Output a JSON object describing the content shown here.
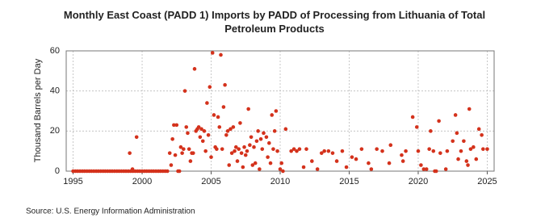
{
  "chart_data": {
    "type": "scatter",
    "title": "Monthly East Coast (PADD 1) Imports by PADD of Processing from Lithuania of Total Petroleum Products",
    "y_label": "Thousand Barrels per Day",
    "source": "Source: U.S. Energy Information Administration",
    "color": "#d4321c",
    "grid": true,
    "xlim": [
      1994.5,
      2025.5
    ],
    "xticks": [
      1995,
      2000,
      2005,
      2010,
      2015,
      2020,
      2025
    ],
    "ylim": [
      0,
      60
    ],
    "yticks": [
      0,
      20,
      40,
      60
    ],
    "x": [
      1995,
      1995.17,
      1995.33,
      1995.5,
      1995.67,
      1995.83,
      1996,
      1996.17,
      1996.33,
      1996.5,
      1996.67,
      1996.83,
      1997,
      1997.17,
      1997.33,
      1997.5,
      1997.67,
      1997.83,
      1998,
      1998.17,
      1998.33,
      1998.5,
      1998.67,
      1998.83,
      1999,
      1999.17,
      1999.33,
      1999.5,
      1999.67,
      1999.83,
      2000,
      2000.17,
      2000.33,
      2000.5,
      2000.67,
      2000.83,
      2001,
      2001.17,
      2001.33,
      2001.5,
      2001.67,
      2001.83,
      1999.1,
      1999.3,
      1999.6,
      2002.0,
      2002.1,
      2002.2,
      2002.3,
      2002.4,
      2002.5,
      2002.6,
      2002.7,
      2002.8,
      2002.9,
      2003.0,
      2003.1,
      2003.2,
      2003.3,
      2003.4,
      2003.5,
      2003.6,
      2003.7,
      2003.8,
      2003.9,
      2004.0,
      2004.1,
      2004.2,
      2004.3,
      2004.4,
      2004.5,
      2004.6,
      2004.7,
      2004.8,
      2004.9,
      2005.0,
      2005.1,
      2005.2,
      2005.3,
      2005.4,
      2005.5,
      2005.6,
      2005.7,
      2005.8,
      2005.9,
      2006.0,
      2006.1,
      2006.2,
      2006.3,
      2006.4,
      2006.5,
      2006.6,
      2006.7,
      2006.8,
      2006.9,
      2007.0,
      2007.1,
      2007.2,
      2007.3,
      2007.4,
      2007.5,
      2007.6,
      2007.7,
      2007.8,
      2007.9,
      2008.0,
      2008.1,
      2008.2,
      2008.3,
      2008.4,
      2008.5,
      2008.6,
      2008.7,
      2008.8,
      2009.0,
      2009.1,
      2009.2,
      2009.3,
      2009.4,
      2009.5,
      2009.6,
      2009.7,
      2009.8,
      2010.0,
      2010.1,
      2010.2,
      2010.4,
      2010.8,
      2011.0,
      2011.2,
      2011.4,
      2011.7,
      2011.9,
      2012.3,
      2012.7,
      2013.0,
      2013.2,
      2013.5,
      2013.8,
      2014.1,
      2014.5,
      2014.8,
      2015.2,
      2015.5,
      2015.9,
      2016.4,
      2016.6,
      2017.0,
      2017.4,
      2017.9,
      2018.0,
      2018.8,
      2018.9,
      2019.1,
      2019.6,
      2019.9,
      2020.0,
      2020.2,
      2020.4,
      2020.6,
      2020.8,
      2020.9,
      2021.1,
      2021.2,
      2021.3,
      2021.5,
      2021.6,
      2022.0,
      2022.1,
      2022.5,
      2022.7,
      2022.8,
      2022.9,
      2023.1,
      2023.3,
      2023.5,
      2023.6,
      2023.7,
      2023.8,
      2024.0,
      2024.2,
      2024.4,
      2024.6,
      2024.7,
      2025.0
    ],
    "values": [
      0,
      0,
      0,
      0,
      0,
      0,
      0,
      0,
      0,
      0,
      0,
      0,
      0,
      0,
      0,
      0,
      0,
      0,
      0,
      0,
      0,
      0,
      0,
      0,
      0,
      0,
      0,
      0,
      0,
      0,
      0,
      0,
      0,
      0,
      0,
      0,
      0,
      0,
      0,
      0,
      0,
      0,
      9,
      1,
      17,
      9,
      3,
      16,
      23,
      8,
      23,
      0,
      0,
      12,
      9,
      11,
      40,
      22,
      19,
      11,
      5,
      9,
      9,
      51,
      20,
      21,
      22,
      17,
      21,
      15,
      20,
      10,
      34,
      18,
      42,
      7,
      59,
      28,
      12,
      11,
      27,
      22,
      58,
      11,
      32,
      43,
      18,
      20,
      3,
      21,
      9,
      22,
      10,
      12,
      5,
      11,
      24,
      9,
      2,
      12,
      8,
      10,
      31,
      13,
      17,
      3,
      12,
      4,
      15,
      20,
      1,
      16,
      11,
      19,
      17,
      7,
      14,
      4,
      28,
      11,
      20,
      30,
      10,
      1,
      4,
      0,
      21,
      10,
      11,
      10,
      11,
      2,
      11,
      5,
      1,
      9,
      10,
      10,
      9,
      5,
      10,
      2,
      7,
      6,
      11,
      4,
      1,
      11,
      10,
      4,
      13,
      8,
      5,
      10,
      27,
      22,
      10,
      3,
      1,
      1,
      11,
      20,
      10,
      0,
      0,
      25,
      9,
      1,
      10,
      15,
      28,
      19,
      6,
      10,
      15,
      5,
      3,
      31,
      11,
      12,
      6,
      21,
      18,
      11,
      11
    ]
  }
}
